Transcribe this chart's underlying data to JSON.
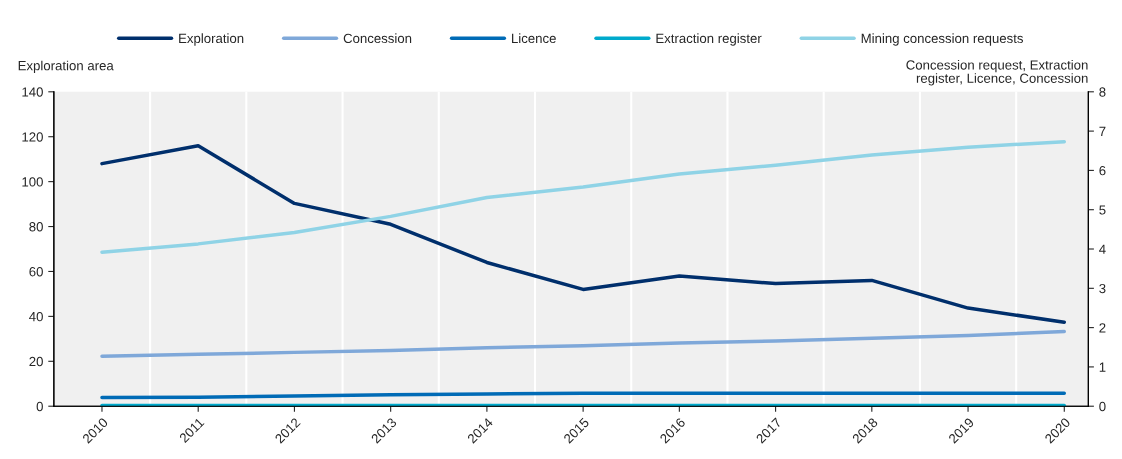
{
  "chart_data": {
    "type": "line",
    "ylabel": "Exploration area",
    "y2label": "Concession request, Extraction register, Licence, Concession",
    "categories": [
      "2010",
      "2011",
      "2012",
      "2013",
      "2014",
      "2015",
      "2016",
      "2017",
      "2018",
      "2019",
      "2020"
    ],
    "series": [
      {
        "name": "Exploration",
        "color": "#002f6c",
        "values": [
          108,
          116,
          90.3,
          81,
          64,
          52,
          58,
          54.6,
          56,
          43.7,
          37.4
        ]
      },
      {
        "name": "Concession",
        "color": "#7fa8d9",
        "axis": "y2",
        "values": [
          1.27,
          1.32,
          1.37,
          1.42,
          1.49,
          1.54,
          1.61,
          1.66,
          1.73,
          1.8,
          1.9
        ]
      },
      {
        "name": "Licence",
        "color": "#006bb6",
        "axis": "y2",
        "values": [
          0.22,
          0.23,
          0.26,
          0.29,
          0.31,
          0.33,
          0.33,
          0.33,
          0.33,
          0.33,
          0.33
        ]
      },
      {
        "name": "Extraction register",
        "color": "#00aacc",
        "axis": "y2",
        "values": [
          0.02,
          0.02,
          0.02,
          0.02,
          0.02,
          0.02,
          0.02,
          0.02,
          0.02,
          0.02,
          0.02
        ]
      },
      {
        "name": "Mining concession requests",
        "color": "#8fd3e6",
        "axis": "y2",
        "values": [
          3.92,
          4.13,
          4.42,
          4.83,
          5.31,
          5.58,
          5.91,
          6.13,
          6.39,
          6.59,
          6.73
        ]
      }
    ],
    "ylim": [
      0,
      140
    ],
    "yticks": [
      0,
      20,
      40,
      60,
      80,
      100,
      120,
      140
    ],
    "y2lim": [
      0,
      8
    ],
    "y2ticks": [
      0,
      1,
      2,
      3,
      4,
      5,
      6,
      7,
      8
    ],
    "grid": "x",
    "legend": "top",
    "marker": "none",
    "line_style": "solid"
  }
}
